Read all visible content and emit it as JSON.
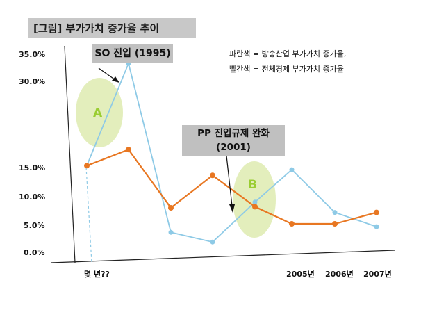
{
  "title": "[그림] 부가가치 증가율 추이",
  "legend": {
    "line1": "파란색 = 방송산업 부가가치 증가율,",
    "line2": "빨간색 = 전체경제 부가가치 증가율"
  },
  "annotations": {
    "so_entry": "SO 진입 (1995)",
    "pp_line1": "PP 진입규제 완화",
    "pp_line2": "(2001)",
    "label_a": "A",
    "label_b": "B"
  },
  "colors": {
    "broadcast": "#8ecae6",
    "economy": "#e87722",
    "highlight": "#d9e8a6",
    "highlight_text": "#9acd32"
  },
  "chart_data": {
    "type": "line",
    "y_tick_labels": [
      "0.0%",
      "5.0%",
      "10.0%",
      "15.0%",
      "30.0%",
      "35.0%"
    ],
    "x_tick_labels": [
      "몇 년??",
      "2005년",
      "2006년",
      "2007년"
    ],
    "series": [
      {
        "name": "방송산업 부가가치 증가율",
        "color": "#8ecae6",
        "values": [
          15.2,
          33.0,
          3.5,
          1.8,
          8.8,
          14.5,
          7.0,
          4.5
        ]
      },
      {
        "name": "전체경제 부가가치 증가율",
        "color": "#e87722",
        "values": [
          15.2,
          18.0,
          7.8,
          13.5,
          8.0,
          5.0,
          5.0,
          7.0
        ]
      }
    ]
  }
}
